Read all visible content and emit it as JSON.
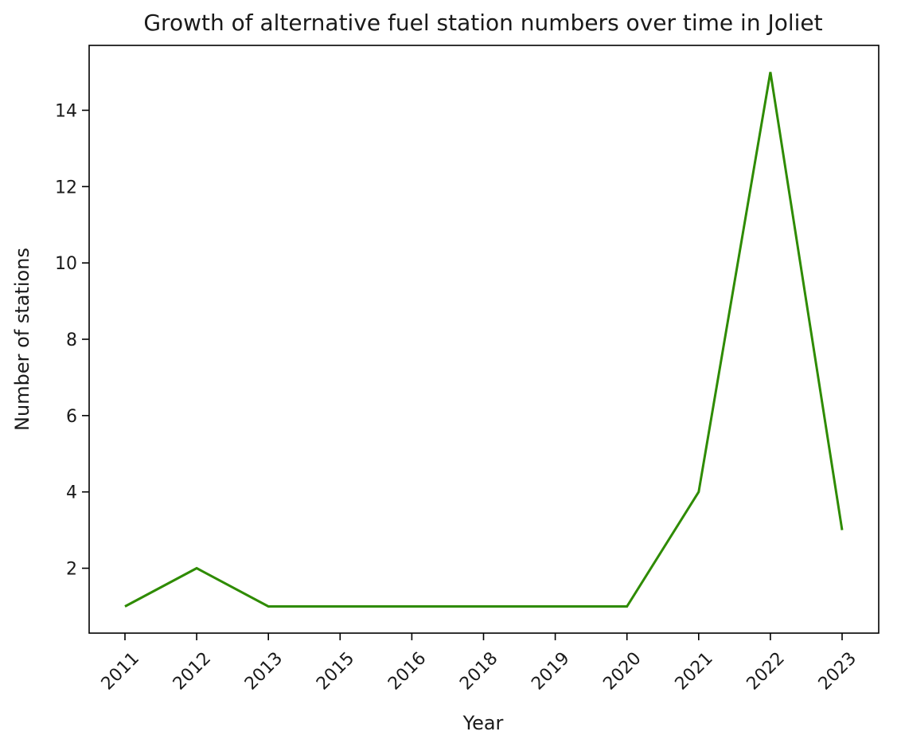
{
  "chart_data": {
    "type": "line",
    "title": "Growth of alternative fuel station numbers over time in Joliet",
    "xlabel": "Year",
    "ylabel": "Number of stations",
    "categories": [
      "2011",
      "2012",
      "2013",
      "2015",
      "2016",
      "2018",
      "2019",
      "2020",
      "2021",
      "2022",
      "2023"
    ],
    "series": [
      {
        "values": [
          1,
          2,
          1,
          1,
          1,
          1,
          1,
          1,
          4,
          15,
          3
        ],
        "color": "#2e8b00"
      }
    ],
    "yticks": [
      2,
      4,
      6,
      8,
      10,
      12,
      14
    ],
    "ylim": [
      0.3,
      15.7
    ],
    "grid": false,
    "legend": "none"
  }
}
